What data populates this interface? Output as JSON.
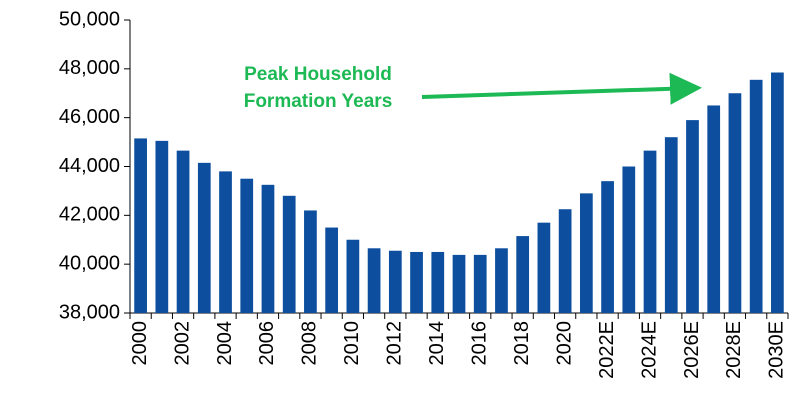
{
  "chart_data": {
    "type": "bar",
    "categories": [
      "2000",
      null,
      "2002",
      null,
      "2004",
      null,
      "2006",
      null,
      "2008",
      null,
      "2010",
      null,
      "2012",
      null,
      "2014",
      null,
      "2016",
      null,
      "2018",
      null,
      "2020",
      null,
      "2022E",
      null,
      "2024E",
      null,
      "2026E",
      null,
      "2028E",
      null,
      "2030E"
    ],
    "values": [
      45150,
      45050,
      44650,
      44150,
      43800,
      43500,
      43250,
      42800,
      42200,
      41500,
      41000,
      40650,
      40550,
      40500,
      40500,
      40380,
      40380,
      40650,
      41150,
      41700,
      42250,
      42900,
      43400,
      44000,
      44650,
      45200,
      45900,
      46500,
      47000,
      47550,
      47850
    ],
    "color": "#0d4f9e",
    "ylim": [
      38000,
      50000
    ],
    "yticks": [
      {
        "value": 38000,
        "label": "38,000"
      },
      {
        "value": 40000,
        "label": "40,000"
      },
      {
        "value": 42000,
        "label": "42,000"
      },
      {
        "value": 44000,
        "label": "44,000"
      },
      {
        "value": 46000,
        "label": "46,000"
      },
      {
        "value": 48000,
        "label": "48,000"
      },
      {
        "value": 50000,
        "label": "50,000"
      }
    ],
    "grid": false,
    "annotation": {
      "lines": [
        "Peak Household",
        "Formation Years"
      ],
      "color": "#1db954"
    }
  }
}
